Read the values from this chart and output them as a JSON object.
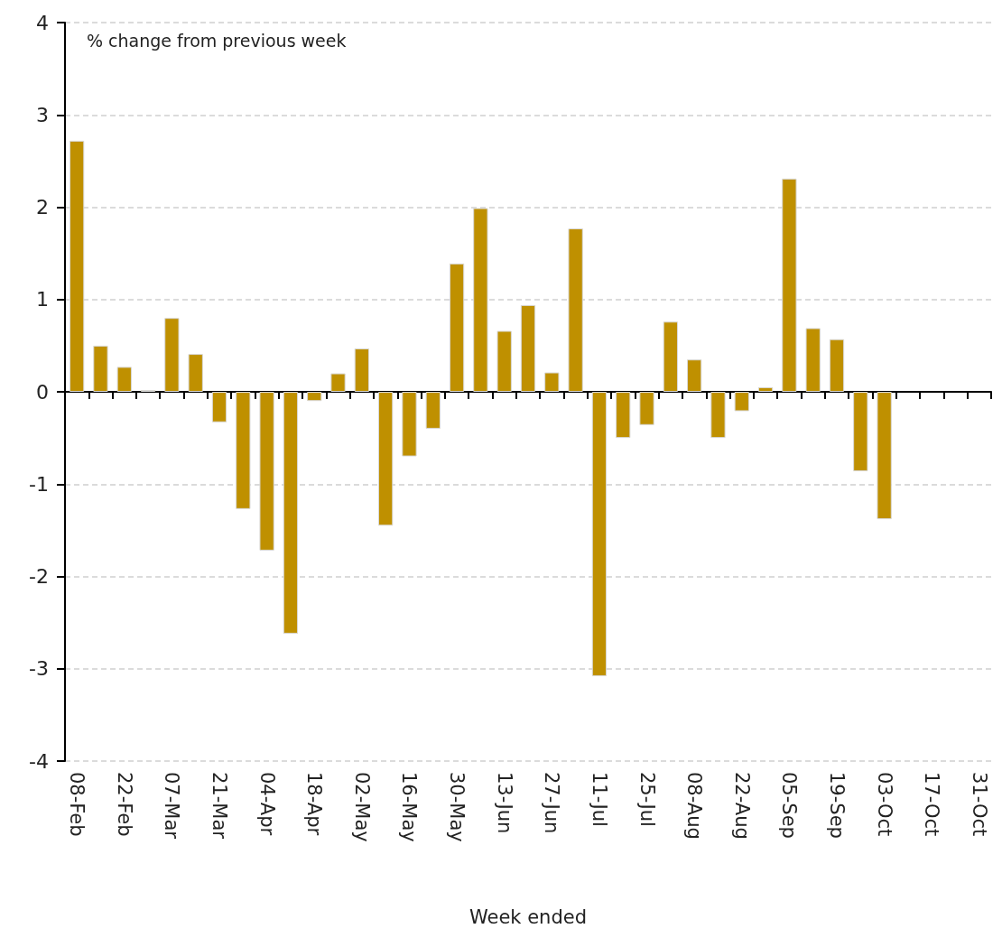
{
  "chart_data": {
    "type": "bar",
    "title": "% change from previous week",
    "xlabel": "Week ended",
    "categories": [
      "08-Feb",
      null,
      "22-Feb",
      null,
      "07-Mar",
      null,
      "21-Mar",
      null,
      "04-Apr",
      null,
      "18-Apr",
      null,
      "02-May",
      null,
      "16-May",
      null,
      "30-May",
      null,
      "13-Jun",
      null,
      "27-Jun",
      null,
      "11-Jul",
      null,
      "25-Jul",
      null,
      "08-Aug",
      null,
      "22-Aug",
      null,
      "05-Sep",
      null,
      "19-Sep",
      null,
      "03-Oct",
      null,
      "17-Oct",
      null,
      "31-Oct"
    ],
    "values": [
      2.72,
      0.5,
      0.27,
      0.02,
      0.8,
      0.41,
      -0.33,
      -1.27,
      -1.72,
      -2.62,
      -0.1,
      0.2,
      0.47,
      -1.45,
      -0.7,
      -0.4,
      1.39,
      1.99,
      0.66,
      0.94,
      0.21,
      1.77,
      -3.08,
      -0.5,
      -0.36,
      0.76,
      0.35,
      -0.5,
      -0.21,
      0.05,
      2.31,
      0.69,
      0.57,
      -0.86,
      -1.38,
      null,
      null,
      null,
      null
    ],
    "color": "#bf9000",
    "ylim": [
      -4,
      4
    ],
    "yticks": [
      -4,
      -3,
      -2,
      -1,
      0,
      1,
      2,
      3,
      4
    ],
    "grid": "y"
  }
}
